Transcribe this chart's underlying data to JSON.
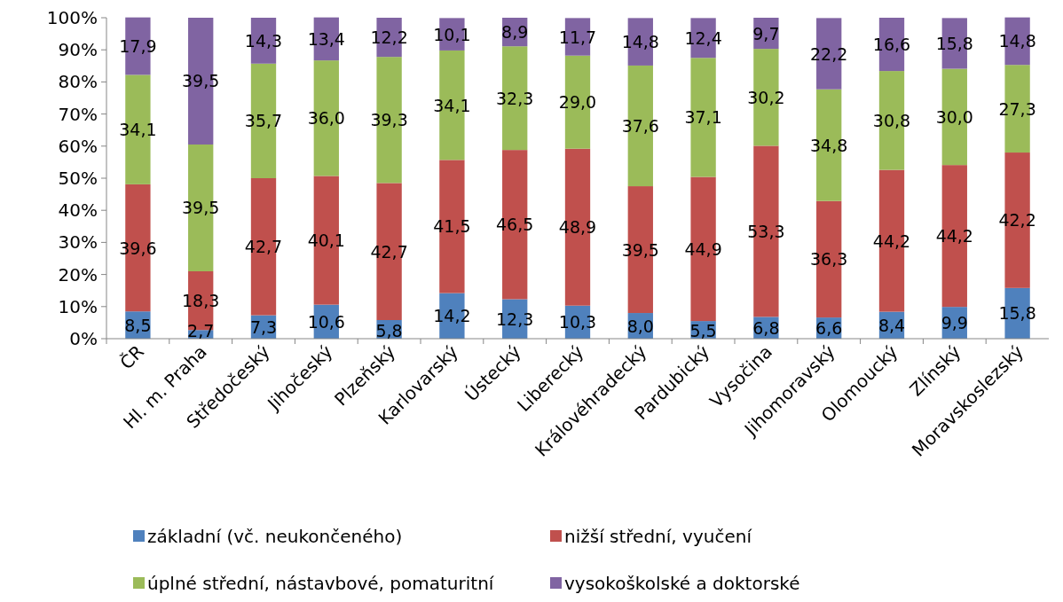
{
  "chart_data": {
    "type": "bar",
    "stacked": true,
    "categories": [
      "ČR",
      "Hl. m. Praha",
      "Středočeský",
      "Jihočeský",
      "Plzeňský",
      "Karlovarský",
      "Ústecký",
      "Liberecký",
      "Královéhradecký",
      "Pardubický",
      "Vysočina",
      "Jihomoravský",
      "Olomoucký",
      "Zlínský",
      "Moravskoslezský"
    ],
    "series": [
      {
        "name": "základní (vč. neukončeného)",
        "color": "#4f81bd",
        "values": [
          8.5,
          2.7,
          7.3,
          10.6,
          5.8,
          14.2,
          12.3,
          10.3,
          8.0,
          5.5,
          6.8,
          6.6,
          8.4,
          9.9,
          15.8
        ],
        "value_labels": [
          "8,5",
          "2,7",
          "7,3",
          "10,6",
          "5,8",
          "14,2",
          "12,3",
          "10,3",
          "8,0",
          "5,5",
          "6,8",
          "6,6",
          "8,4",
          "9,9",
          "15,8"
        ]
      },
      {
        "name": "nižší střední, vyučení",
        "color": "#c0504d",
        "values": [
          39.6,
          18.3,
          42.7,
          40.1,
          42.7,
          41.5,
          46.5,
          48.9,
          39.5,
          44.9,
          53.3,
          36.3,
          44.2,
          44.2,
          42.2
        ],
        "value_labels": [
          "39,6",
          "18,3",
          "42,7",
          "40,1",
          "42,7",
          "41,5",
          "46,5",
          "48,9",
          "39,5",
          "44,9",
          "53,3",
          "36,3",
          "44,2",
          "44,2",
          "42,2"
        ]
      },
      {
        "name": "úplné střední, nástavbové, pomaturitní",
        "color": "#9bbb59",
        "values": [
          34.1,
          39.5,
          35.7,
          36.0,
          39.3,
          34.1,
          32.3,
          29.0,
          37.6,
          37.1,
          30.2,
          34.8,
          30.8,
          30.0,
          27.3
        ],
        "value_labels": [
          "34,1",
          "39,5",
          "35,7",
          "36,0",
          "39,3",
          "34,1",
          "32,3",
          "29,0",
          "37,6",
          "37,1",
          "30,2",
          "34,8",
          "30,8",
          "30,0",
          "27,3"
        ]
      },
      {
        "name": "vysokoškolské a doktorské",
        "color": "#8064a2",
        "values": [
          17.9,
          39.5,
          14.3,
          13.4,
          12.2,
          10.1,
          8.9,
          11.7,
          14.8,
          12.4,
          9.7,
          22.2,
          16.6,
          15.8,
          14.8
        ],
        "value_labels": [
          "17,9",
          "39,5",
          "14,3",
          "13,4",
          "12,2",
          "10,1",
          "8,9",
          "11,7",
          "14,8",
          "12,4",
          "9,7",
          "22,2",
          "16,6",
          "15,8",
          "14,8"
        ]
      }
    ],
    "ylim": [
      0,
      100
    ],
    "yticks": [
      {
        "value": 0,
        "label": "0%"
      },
      {
        "value": 10,
        "label": "10%"
      },
      {
        "value": 20,
        "label": "20%"
      },
      {
        "value": 30,
        "label": "30%"
      },
      {
        "value": 40,
        "label": "40%"
      },
      {
        "value": 50,
        "label": "50%"
      },
      {
        "value": 60,
        "label": "60%"
      },
      {
        "value": 70,
        "label": "70%"
      },
      {
        "value": 80,
        "label": "80%"
      },
      {
        "value": 90,
        "label": "90%"
      },
      {
        "value": 100,
        "label": "100%"
      }
    ],
    "grid": false,
    "legend": "bottom"
  }
}
